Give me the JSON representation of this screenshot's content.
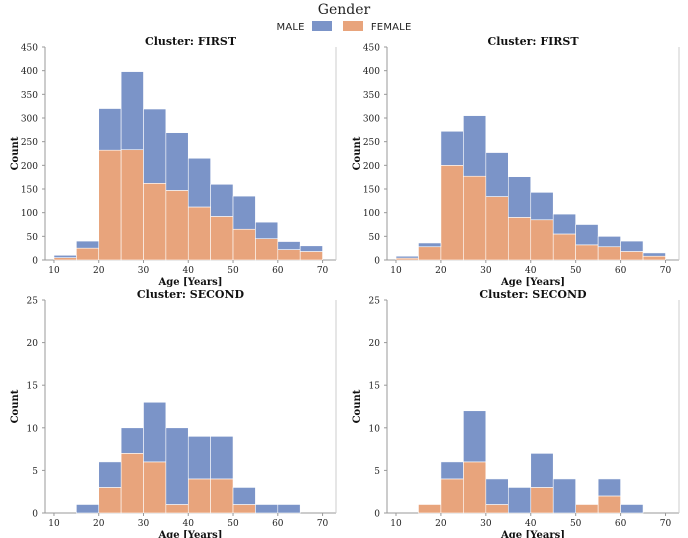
{
  "legend": {
    "title": "Gender",
    "items": [
      {
        "label": "MALE",
        "color": "#7b94c8"
      },
      {
        "label": "FEMALE",
        "color": "#e8a47c"
      }
    ]
  },
  "chart_data": [
    {
      "type": "histogram",
      "stacked": true,
      "title": "Cluster: FIRST",
      "xlabel": "Age [Years]",
      "ylabel": "Count",
      "xlim": [
        8,
        73
      ],
      "ylim": [
        0,
        450
      ],
      "yticks": [
        0,
        50,
        100,
        150,
        200,
        250,
        300,
        350,
        400,
        450
      ],
      "xticks": [
        10,
        20,
        30,
        40,
        50,
        60,
        70
      ],
      "bin_edges": [
        10,
        15,
        20,
        25,
        30,
        35,
        40,
        45,
        50,
        55,
        60,
        65,
        70
      ],
      "series": [
        {
          "name": "FEMALE",
          "values": [
            5,
            25,
            232,
            233,
            162,
            147,
            112,
            92,
            65,
            45,
            22,
            18
          ]
        },
        {
          "name": "MALE",
          "values": [
            5,
            15,
            88,
            165,
            157,
            122,
            103,
            68,
            70,
            35,
            17,
            12
          ]
        }
      ]
    },
    {
      "type": "histogram",
      "stacked": true,
      "title": "Cluster: FIRST",
      "xlabel": "Age [Years]",
      "ylabel": "Count",
      "xlim": [
        8,
        73
      ],
      "ylim": [
        0,
        450
      ],
      "yticks": [
        0,
        50,
        100,
        150,
        200,
        250,
        300,
        350,
        400,
        450
      ],
      "xticks": [
        10,
        20,
        30,
        40,
        50,
        60,
        70
      ],
      "bin_edges": [
        10,
        15,
        20,
        25,
        30,
        35,
        40,
        45,
        50,
        55,
        60,
        65,
        70
      ],
      "series": [
        {
          "name": "FEMALE",
          "values": [
            4,
            28,
            200,
            177,
            134,
            90,
            85,
            55,
            32,
            28,
            18,
            8
          ]
        },
        {
          "name": "MALE",
          "values": [
            4,
            8,
            72,
            128,
            93,
            86,
            58,
            42,
            43,
            22,
            22,
            7
          ]
        }
      ]
    },
    {
      "type": "histogram",
      "stacked": true,
      "title": "Cluster: SECOND",
      "xlabel": "Age [Years]",
      "ylabel": "Count",
      "xlim": [
        8,
        73
      ],
      "ylim": [
        0,
        25
      ],
      "yticks": [
        0,
        5,
        10,
        15,
        20,
        25
      ],
      "xticks": [
        10,
        20,
        30,
        40,
        50,
        60,
        70
      ],
      "bin_edges": [
        10,
        15,
        20,
        25,
        30,
        35,
        40,
        45,
        50,
        55,
        60,
        65,
        70
      ],
      "series": [
        {
          "name": "FEMALE",
          "values": [
            0,
            0,
            3,
            7,
            6,
            1,
            4,
            4,
            1,
            0,
            0,
            0
          ]
        },
        {
          "name": "MALE",
          "values": [
            0,
            1,
            3,
            3,
            7,
            9,
            5,
            5,
            2,
            1,
            1,
            0
          ]
        }
      ]
    },
    {
      "type": "histogram",
      "stacked": true,
      "title": "Cluster: SECOND",
      "xlabel": "Age [Years]",
      "ylabel": "Count",
      "xlim": [
        8,
        73
      ],
      "ylim": [
        0,
        25
      ],
      "yticks": [
        0,
        5,
        10,
        15,
        20,
        25
      ],
      "xticks": [
        10,
        20,
        30,
        40,
        50,
        60,
        70
      ],
      "bin_edges": [
        10,
        15,
        20,
        25,
        30,
        35,
        40,
        45,
        50,
        55,
        60,
        65,
        70
      ],
      "series": [
        {
          "name": "FEMALE",
          "values": [
            0,
            1,
            4,
            6,
            1,
            0,
            3,
            0,
            1,
            2,
            0,
            0
          ]
        },
        {
          "name": "MALE",
          "values": [
            0,
            0,
            2,
            6,
            3,
            3,
            4,
            4,
            0,
            2,
            1,
            0
          ]
        }
      ]
    }
  ]
}
